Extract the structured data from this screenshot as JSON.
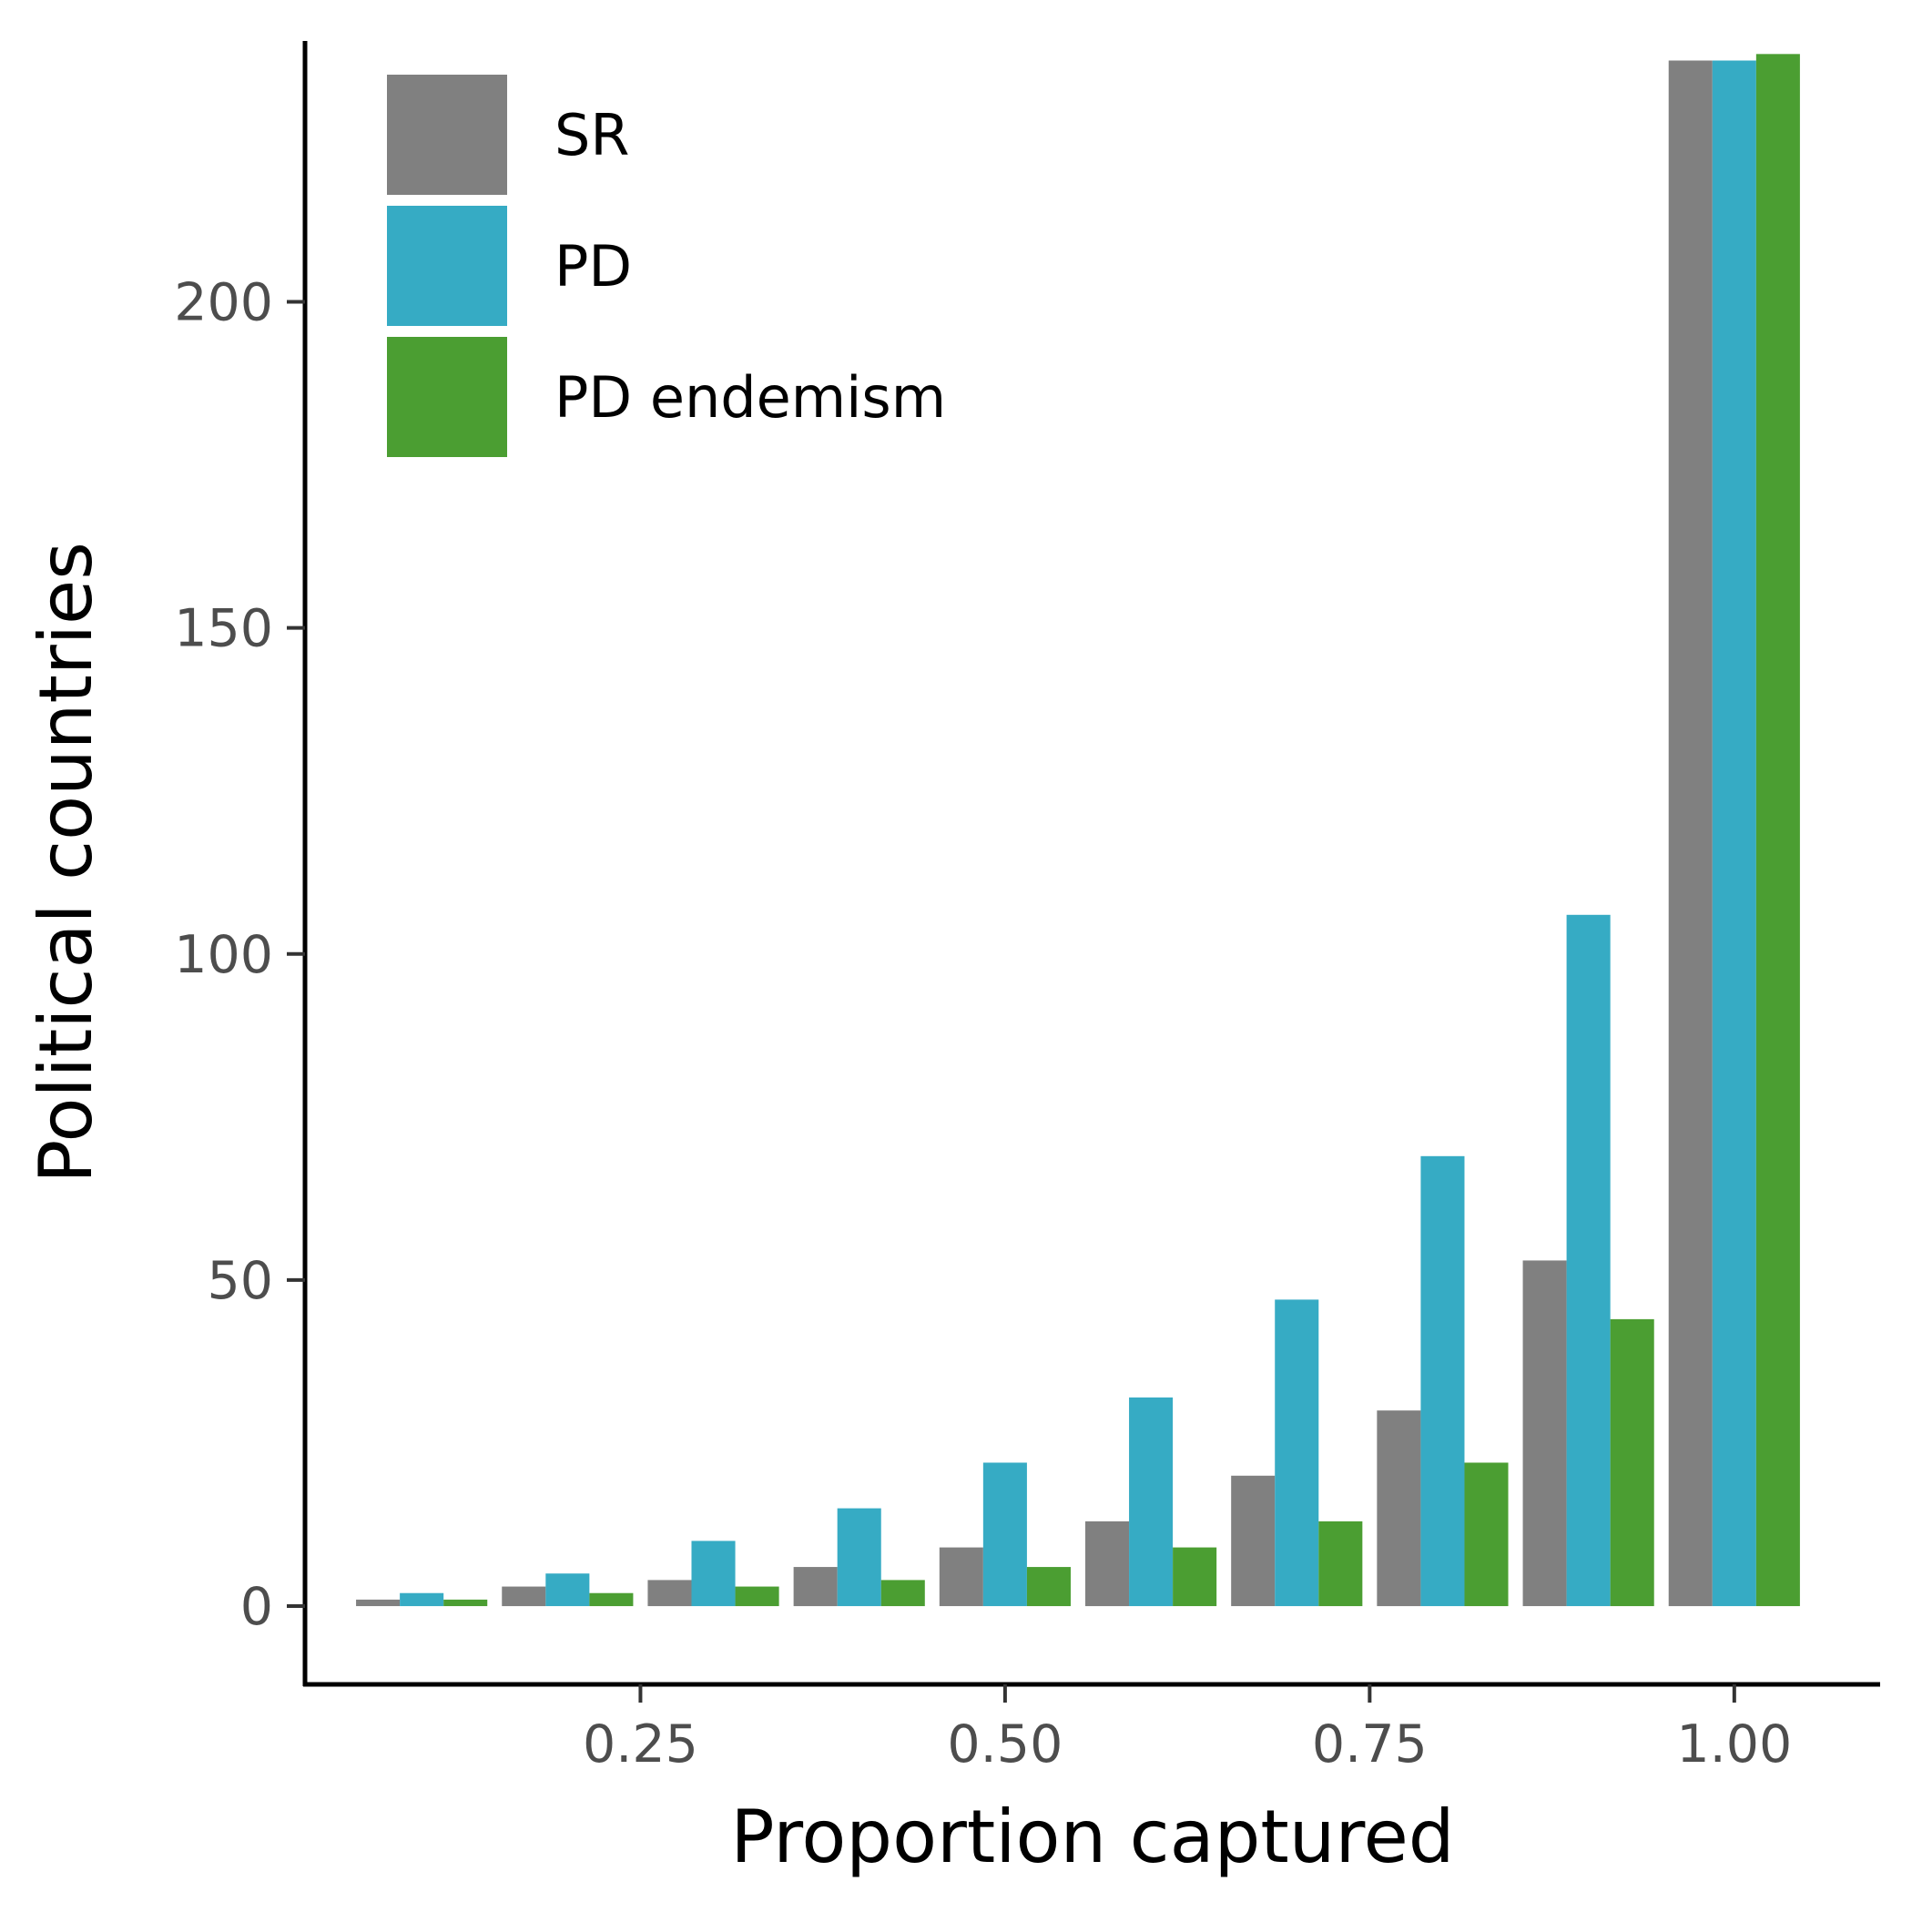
{
  "chart_data": {
    "type": "bar",
    "xlabel": "Proportion captured",
    "ylabel": "Political countries",
    "x": [
      0.1,
      0.2,
      0.3,
      0.4,
      0.5,
      0.6,
      0.7,
      0.8,
      0.9,
      1.0
    ],
    "xlim": [
      0.02,
      1.1
    ],
    "ylim": [
      -12,
      240
    ],
    "x_ticks": [
      {
        "value": 0.25,
        "label": "0.25"
      },
      {
        "value": 0.5,
        "label": "0.50"
      },
      {
        "value": 0.75,
        "label": "0.75"
      },
      {
        "value": 1.0,
        "label": "1.00"
      }
    ],
    "y_ticks": [
      {
        "value": 0,
        "label": "0"
      },
      {
        "value": 50,
        "label": "50"
      },
      {
        "value": 100,
        "label": "100"
      },
      {
        "value": 150,
        "label": "150"
      },
      {
        "value": 200,
        "label": "200"
      }
    ],
    "series": [
      {
        "name": "SR",
        "color": "#808080",
        "values": [
          1,
          3,
          4,
          6,
          9,
          13,
          20,
          30,
          53,
          237
        ]
      },
      {
        "name": "PD",
        "color": "#36abc4",
        "values": [
          2,
          5,
          10,
          15,
          22,
          32,
          47,
          69,
          106,
          237
        ]
      },
      {
        "name": "PD endemism",
        "color": "#4b9e32",
        "values": [
          1,
          2,
          3,
          4,
          6,
          9,
          13,
          22,
          44,
          238
        ]
      }
    ],
    "grid": false,
    "legend_position": "top-left"
  }
}
